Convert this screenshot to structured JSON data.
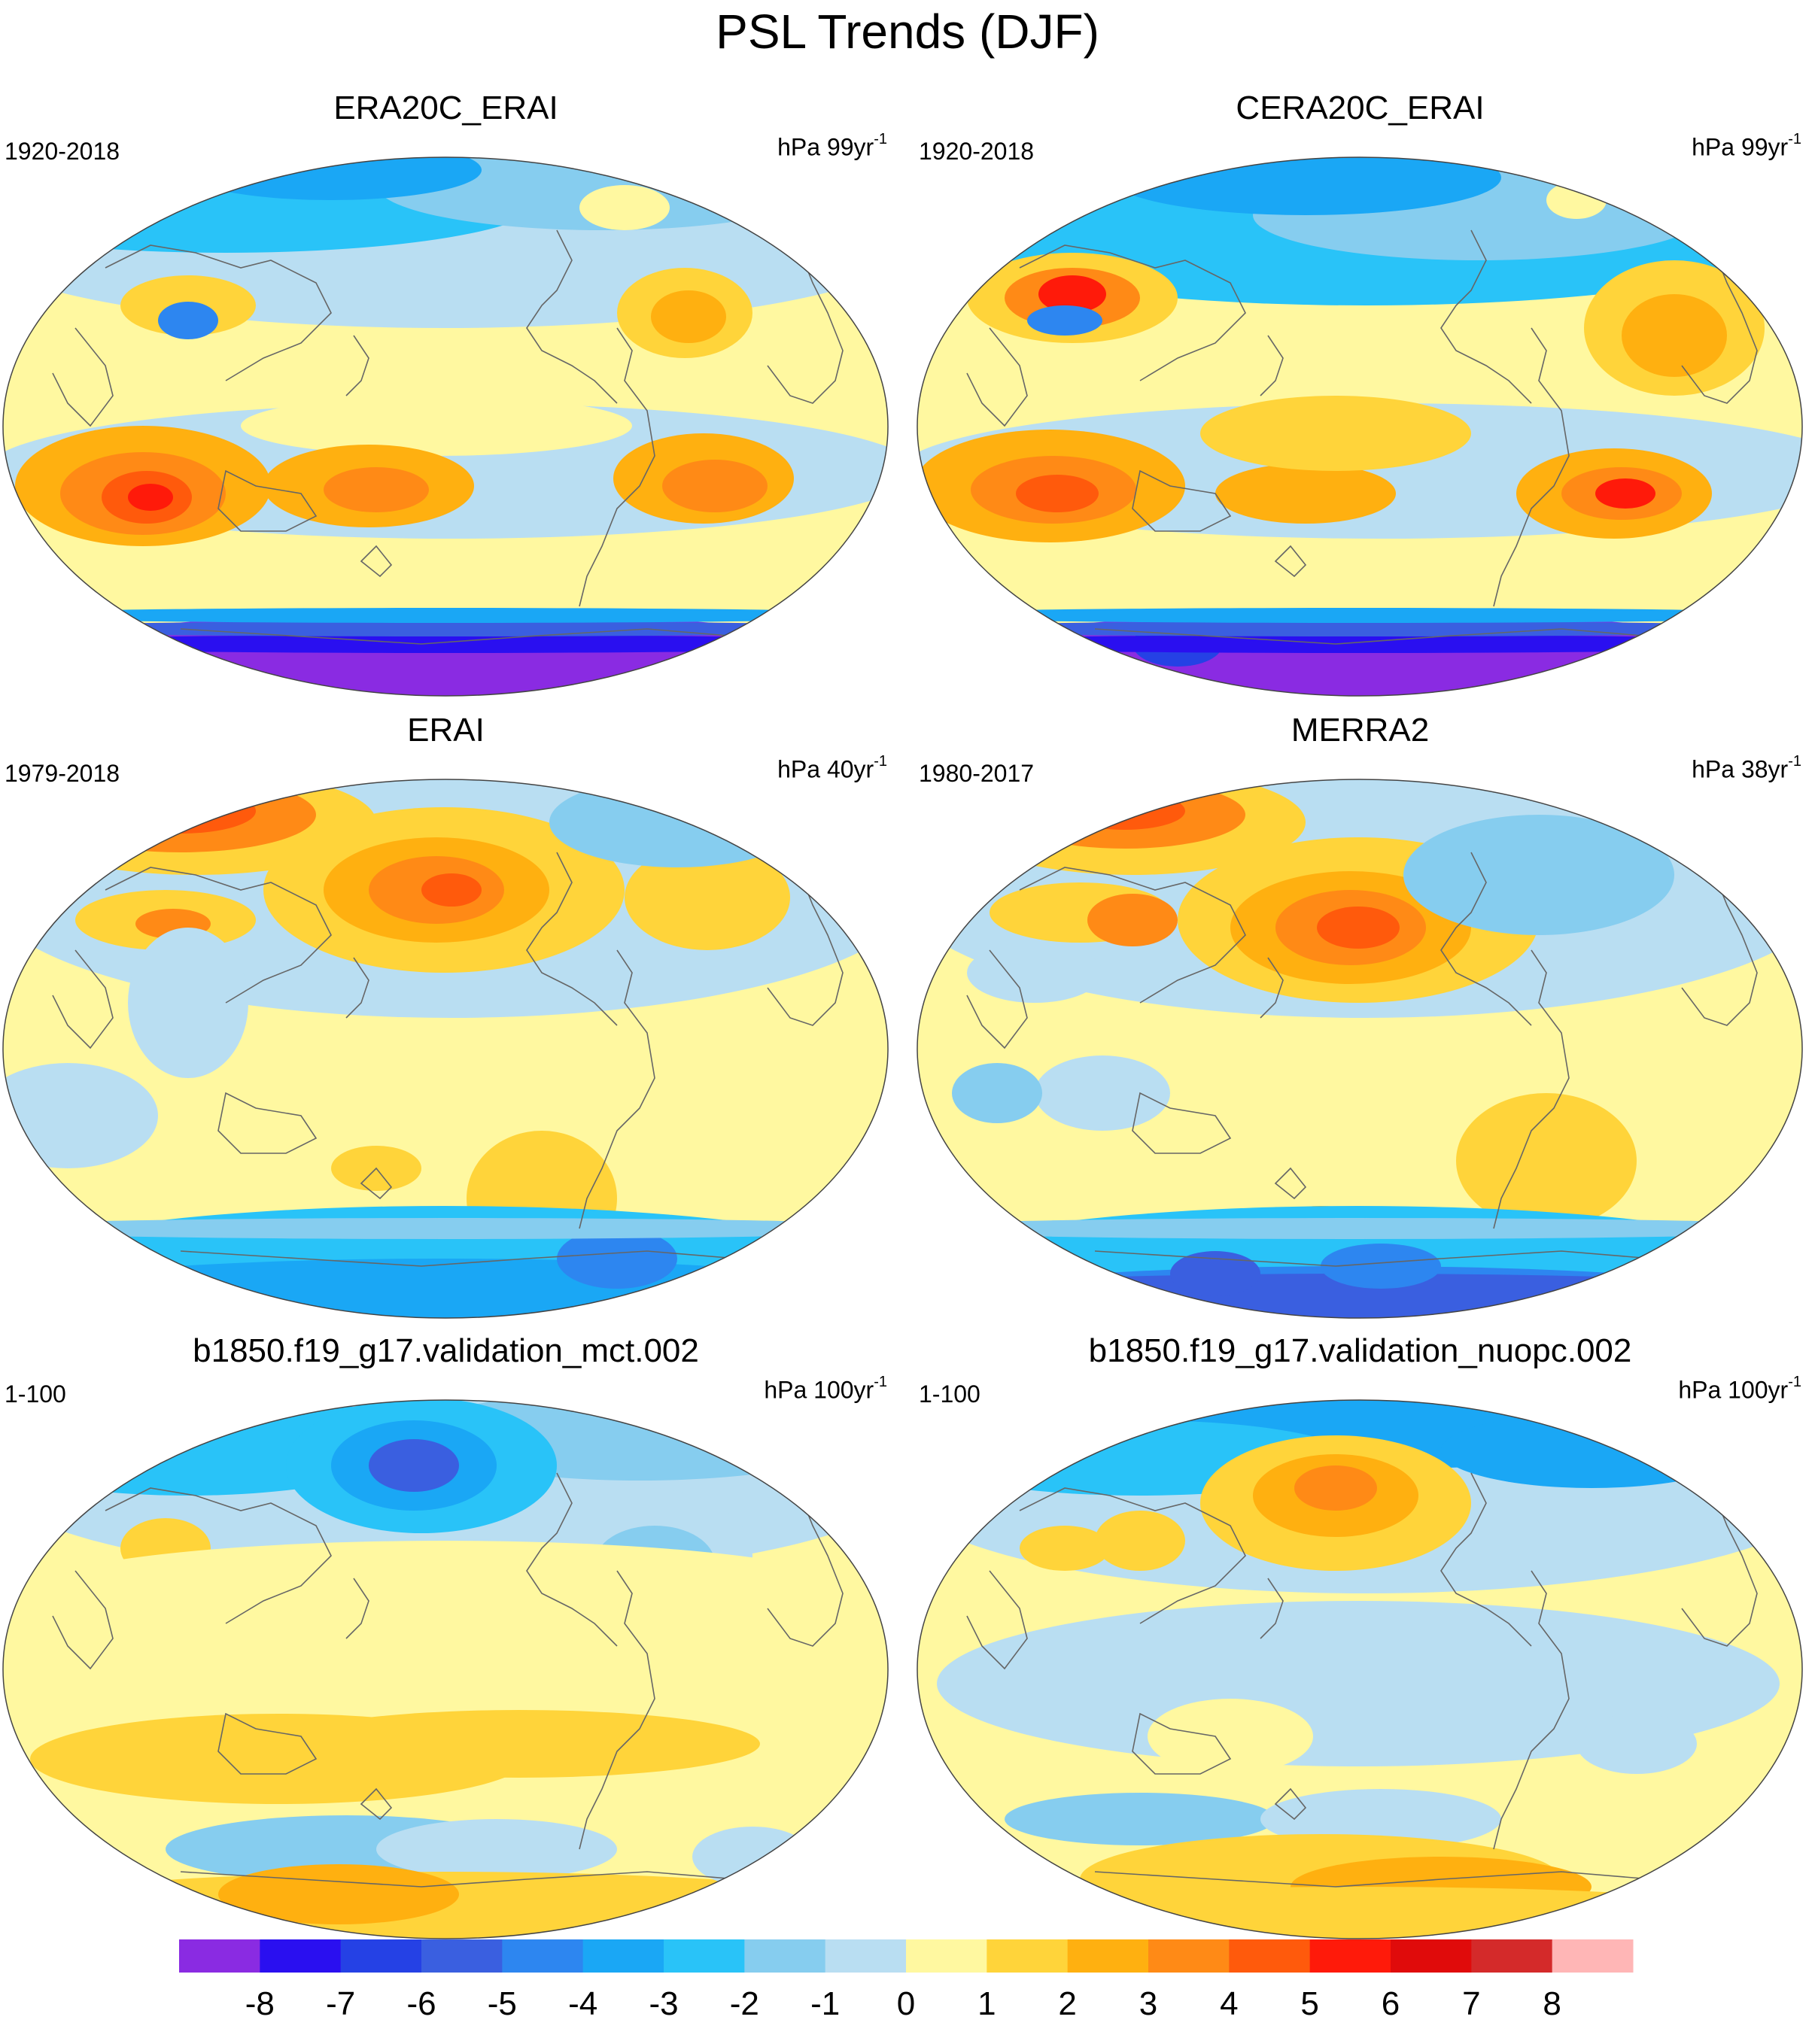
{
  "figure": {
    "title": "PSL Trends (DJF)"
  },
  "panels": [
    {
      "title": "ERA20C_ERAI",
      "period": "1920-2018",
      "units": "hPa 99yr",
      "units_exp": "-1"
    },
    {
      "title": "CERA20C_ERAI",
      "period": "1920-2018",
      "units": "hPa 99yr",
      "units_exp": "-1"
    },
    {
      "title": "ERAI",
      "period": "1979-2018",
      "units": "hPa 40yr",
      "units_exp": "-1"
    },
    {
      "title": "MERRA2",
      "period": "1980-2017",
      "units": "hPa 38yr",
      "units_exp": "-1"
    },
    {
      "title": "b1850.f19_g17.validation_mct.002",
      "period": "1-100",
      "units": "hPa 100yr",
      "units_exp": "-1"
    },
    {
      "title": "b1850.f19_g17.validation_nuopc.002",
      "period": "1-100",
      "units": "hPa 100yr",
      "units_exp": "-1"
    }
  ],
  "colorbar": {
    "labels": [
      "-8",
      "-7",
      "-6",
      "-5",
      "-4",
      "-3",
      "-2",
      "-1",
      "0",
      "1",
      "2",
      "3",
      "4",
      "5",
      "6",
      "7",
      "8"
    ],
    "colors": [
      "#8a2be2",
      "#2a0ff0",
      "#2541e5",
      "#3a5fe0",
      "#2d86f0",
      "#1aa7f5",
      "#29c3f8",
      "#86cdef",
      "#b9def2",
      "#fff8a0",
      "#ffd43a",
      "#ffb010",
      "#ff8a16",
      "#ff5a0c",
      "#ff1a0a",
      "#e00b0b",
      "#d42a2a",
      "#ffb6b6"
    ]
  }
}
